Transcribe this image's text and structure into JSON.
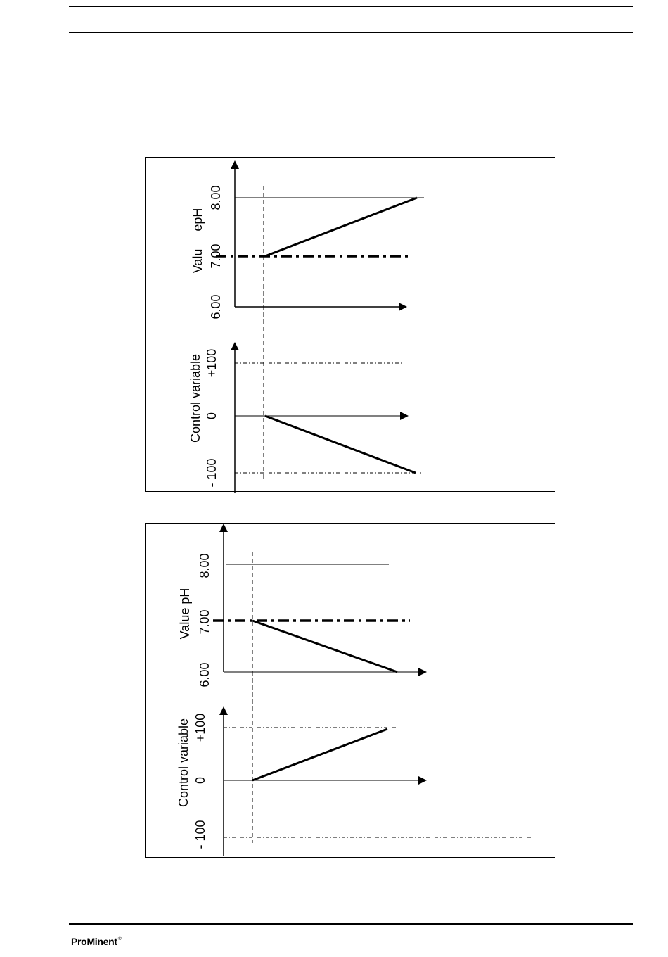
{
  "figures": [
    {
      "value_axis_label": "Valu     epH",
      "value_ticks": [
        "6.00",
        "7.00",
        "8.00"
      ],
      "control_axis_label": "Control variable",
      "control_ticks": [
        "- 100",
        "0",
        "+100"
      ]
    },
    {
      "value_axis_label": "Value pH",
      "value_ticks": [
        "6.00",
        "7.00",
        "8.00"
      ],
      "control_axis_label": "Control variable",
      "control_ticks": [
        "- 100",
        "0",
        "+100"
      ]
    }
  ],
  "footer": {
    "logo": "ProMinent",
    "logo_mark": "®"
  }
}
